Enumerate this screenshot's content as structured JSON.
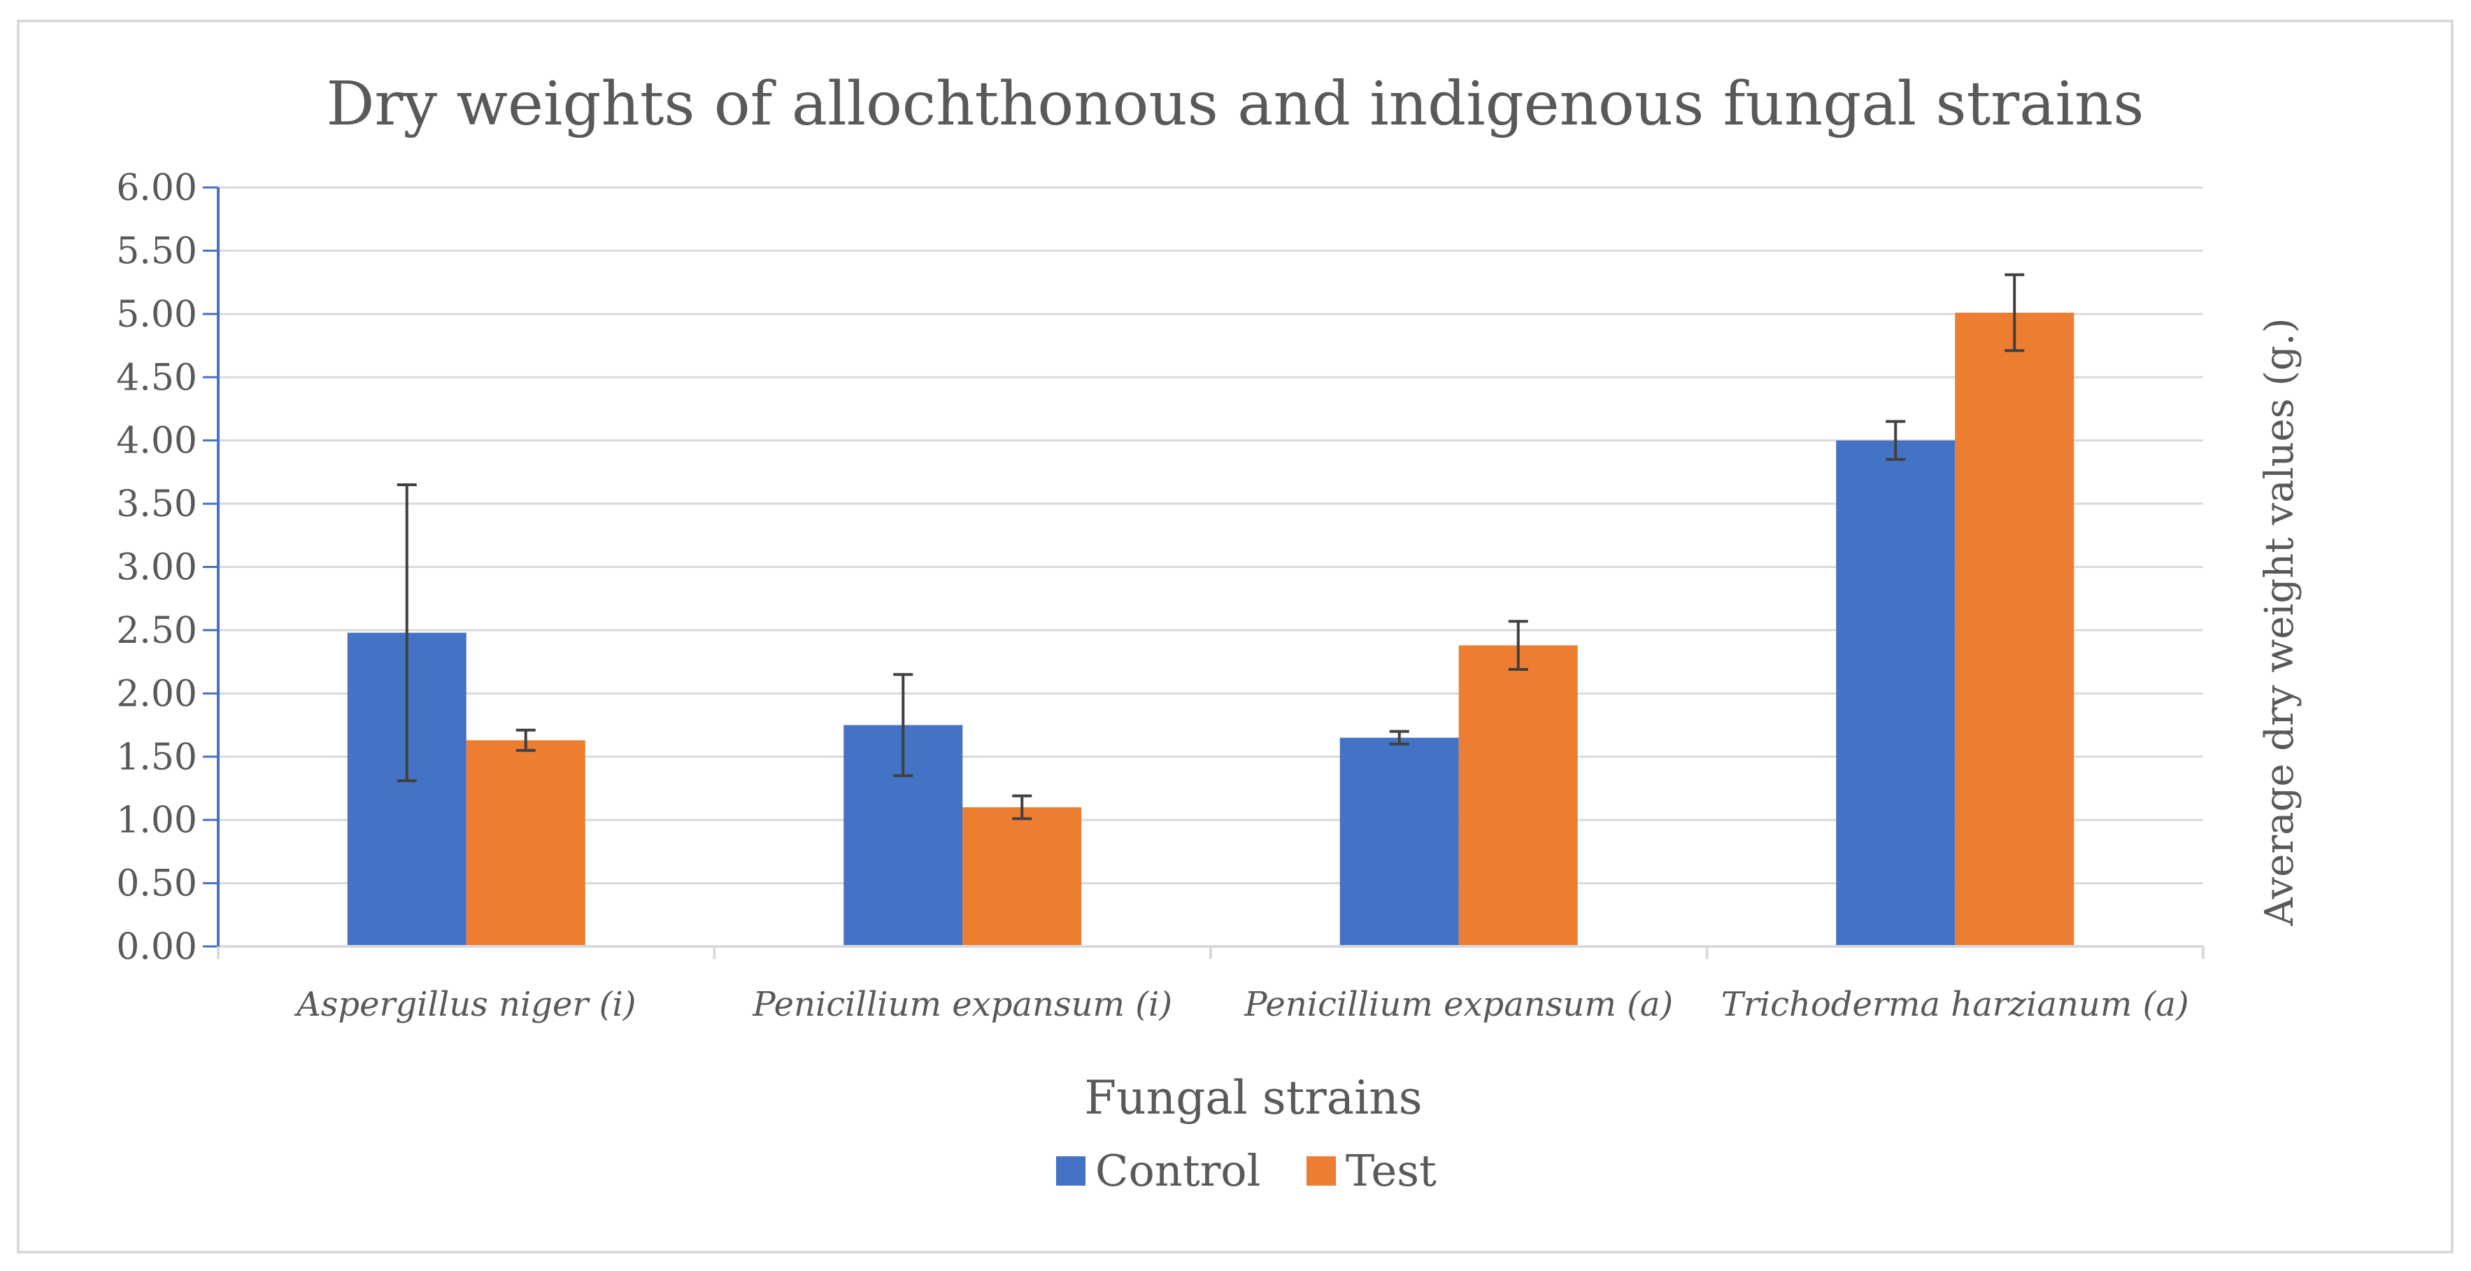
{
  "chart_data": {
    "type": "bar",
    "title": "Dry weights of allochthonous and indigenous fungal strains",
    "xlabel": "Fungal strains",
    "ylabel": "Average dry weight values (g.)",
    "categories": [
      "Aspergillus niger (i)",
      "Penicillium expansum (i)",
      "Penicillium expansum (a)",
      "Trichoderma harzianum (a)"
    ],
    "series": [
      {
        "name": "Control",
        "color": "#4472C4",
        "values": [
          2.48,
          1.75,
          1.65,
          4.0
        ],
        "errors": [
          1.17,
          0.4,
          0.05,
          0.15
        ]
      },
      {
        "name": "Test",
        "color": "#ED7D31",
        "values": [
          1.63,
          1.1,
          2.38,
          5.01
        ],
        "errors": [
          0.08,
          0.09,
          0.19,
          0.3
        ]
      }
    ],
    "ylim": [
      0,
      6
    ],
    "yticks": [
      "0.00",
      "0.50",
      "1.00",
      "1.50",
      "2.00",
      "2.50",
      "3.00",
      "3.50",
      "4.00",
      "4.50",
      "5.00",
      "5.50",
      "6.00"
    ],
    "grid": true,
    "legend": "bottom-center"
  }
}
